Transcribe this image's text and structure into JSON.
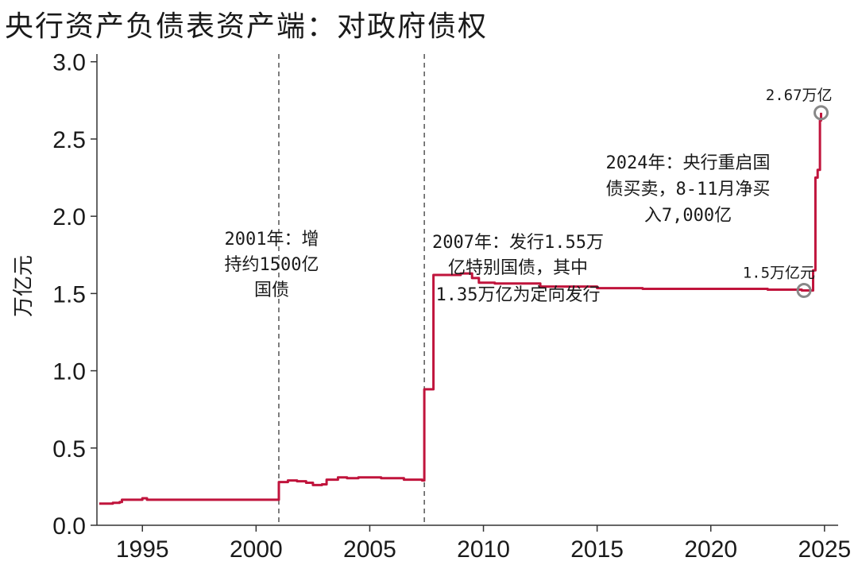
{
  "chart_data": {
    "type": "line",
    "title": "央行资产负债表资产端：对政府债权",
    "ylabel": "万亿元",
    "xlabel": "",
    "xlim": [
      1993.0,
      2025.6
    ],
    "ylim": [
      0.0,
      3.05
    ],
    "xticks": [
      "1995",
      "2000",
      "2005",
      "2010",
      "2015",
      "2020",
      "2025"
    ],
    "yticks": [
      "0.0",
      "0.5",
      "1.0",
      "1.5",
      "2.0",
      "2.5",
      "3.0"
    ],
    "grid": false,
    "legend": "none",
    "line_color": "#c0143c",
    "series": [
      {
        "points": [
          [
            1993.1,
            0.14
          ],
          [
            1993.7,
            0.145
          ],
          [
            1994.0,
            0.15
          ],
          [
            1994.1,
            0.165
          ],
          [
            1994.9,
            0.165
          ],
          [
            1995.0,
            0.175
          ],
          [
            1995.2,
            0.165
          ],
          [
            2000.9,
            0.165
          ],
          [
            2001.0,
            0.28
          ],
          [
            2001.4,
            0.29
          ],
          [
            2001.8,
            0.285
          ],
          [
            2002.2,
            0.275
          ],
          [
            2002.5,
            0.26
          ],
          [
            2002.9,
            0.265
          ],
          [
            2003.1,
            0.295
          ],
          [
            2003.6,
            0.31
          ],
          [
            2004.0,
            0.305
          ],
          [
            2004.5,
            0.31
          ],
          [
            2005.5,
            0.305
          ],
          [
            2006.5,
            0.295
          ],
          [
            2007.3,
            0.29
          ],
          [
            2007.4,
            0.88
          ],
          [
            2007.7,
            0.88
          ],
          [
            2007.8,
            1.62
          ],
          [
            2009.0,
            1.63
          ],
          [
            2009.5,
            1.6
          ],
          [
            2009.8,
            1.57
          ],
          [
            2010.5,
            1.565
          ],
          [
            2012.5,
            1.545
          ],
          [
            2015.0,
            1.535
          ],
          [
            2017.0,
            1.53
          ],
          [
            2020.0,
            1.53
          ],
          [
            2022.5,
            1.525
          ],
          [
            2024.0,
            1.52
          ],
          [
            2024.4,
            1.52
          ],
          [
            2024.5,
            1.65
          ],
          [
            2024.6,
            2.25
          ],
          [
            2024.7,
            2.3
          ],
          [
            2024.8,
            2.62
          ],
          [
            2024.85,
            2.67
          ]
        ]
      }
    ],
    "vlines": [
      2001.0,
      2007.4
    ],
    "markers": [
      {
        "x": 2024.1,
        "y": 1.52,
        "label": "1.5万亿元"
      },
      {
        "x": 2024.85,
        "y": 2.67,
        "label": "2.67万亿"
      }
    ],
    "annotations": [
      {
        "lines": [
          "2001年：增",
          "持约1500亿",
          "国债"
        ]
      },
      {
        "lines": [
          "2007年：发行1.55万",
          "亿特别国债，其中",
          "1.35万亿为定向发行"
        ]
      },
      {
        "lines": [
          "2024年：央行重启国",
          "债买卖，8-11月净买",
          "入7,000亿"
        ]
      }
    ]
  }
}
